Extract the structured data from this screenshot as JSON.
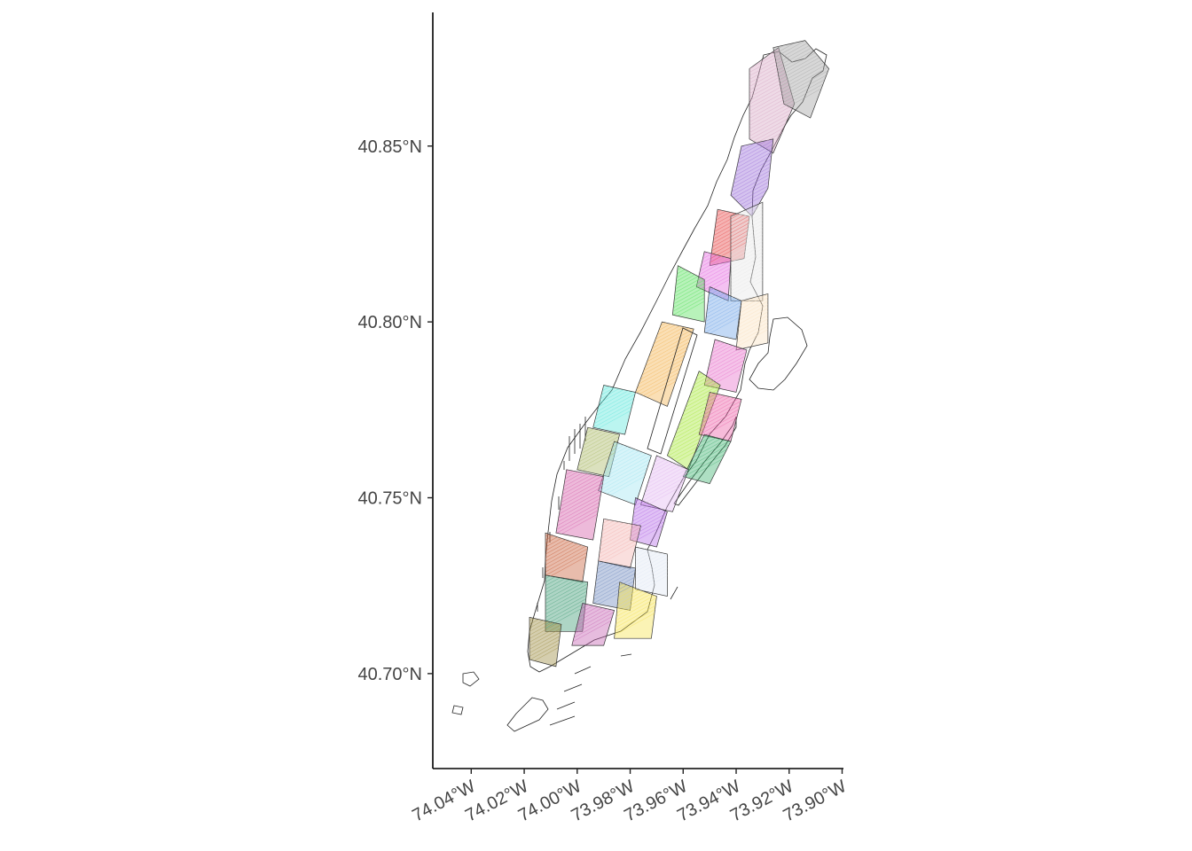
{
  "map": {
    "type": "choropleth",
    "axes": {
      "y_ticks": [
        {
          "value": 40.7,
          "label": "40.70°N"
        },
        {
          "value": 40.75,
          "label": "40.75°N"
        },
        {
          "value": 40.8,
          "label": "40.80°N"
        },
        {
          "value": 40.85,
          "label": "40.85°N"
        }
      ],
      "x_ticks": [
        {
          "value": -74.04,
          "label": "74.04°W"
        },
        {
          "value": -74.02,
          "label": "74.02°W"
        },
        {
          "value": -74.0,
          "label": "74.00°W"
        },
        {
          "value": -73.98,
          "label": "73.98°W"
        },
        {
          "value": -73.96,
          "label": "73.96°W"
        },
        {
          "value": -73.94,
          "label": "73.94°W"
        },
        {
          "value": -73.92,
          "label": "73.92°W"
        },
        {
          "value": -73.9,
          "label": "73.90°W"
        }
      ],
      "x_range": [
        -74.0545,
        -73.8995
      ],
      "y_range": [
        40.673,
        40.888
      ],
      "grid": false
    },
    "regions": [
      {
        "color": "#d7a6c4",
        "points": [
          [
            -73.935,
            40.872
          ],
          [
            -73.924,
            40.878
          ],
          [
            -73.918,
            40.862
          ],
          [
            -73.926,
            40.848
          ],
          [
            -73.935,
            40.852
          ]
        ]
      },
      {
        "color": "#a0a0a0",
        "points": [
          [
            -73.926,
            40.878
          ],
          [
            -73.914,
            40.88
          ],
          [
            -73.905,
            40.872
          ],
          [
            -73.912,
            40.858
          ],
          [
            -73.922,
            40.862
          ]
        ]
      },
      {
        "color": "#9b6fd9",
        "points": [
          [
            -73.938,
            40.85
          ],
          [
            -73.926,
            40.852
          ],
          [
            -73.928,
            40.838
          ],
          [
            -73.934,
            40.83
          ],
          [
            -73.942,
            40.836
          ]
        ]
      },
      {
        "color": "#e84a4a",
        "points": [
          [
            -73.947,
            40.832
          ],
          [
            -73.935,
            40.83
          ],
          [
            -73.937,
            40.818
          ],
          [
            -73.95,
            40.816
          ]
        ]
      },
      {
        "color": "#e46be0",
        "points": [
          [
            -73.952,
            40.82
          ],
          [
            -73.942,
            40.818
          ],
          [
            -73.943,
            40.806
          ],
          [
            -73.955,
            40.81
          ]
        ]
      },
      {
        "color": "#e8e8e8",
        "points": [
          [
            -73.942,
            40.83
          ],
          [
            -73.93,
            40.834
          ],
          [
            -73.93,
            40.806
          ],
          [
            -73.942,
            40.806
          ]
        ]
      },
      {
        "color": "#55e05a",
        "points": [
          [
            -73.962,
            40.816
          ],
          [
            -73.952,
            40.812
          ],
          [
            -73.952,
            40.8
          ],
          [
            -73.964,
            40.802
          ]
        ]
      },
      {
        "color": "#6fa4e8",
        "points": [
          [
            -73.95,
            40.81
          ],
          [
            -73.938,
            40.806
          ],
          [
            -73.94,
            40.795
          ],
          [
            -73.952,
            40.797
          ]
        ]
      },
      {
        "color": "#fbe3c0",
        "points": [
          [
            -73.938,
            40.806
          ],
          [
            -73.928,
            40.808
          ],
          [
            -73.928,
            40.794
          ],
          [
            -73.94,
            40.792
          ]
        ]
      },
      {
        "color": "#f4b24e",
        "points": [
          [
            -73.968,
            40.8
          ],
          [
            -73.956,
            40.798
          ],
          [
            -73.966,
            40.776
          ],
          [
            -73.978,
            40.78
          ]
        ]
      },
      {
        "color": "#e86fca",
        "points": [
          [
            -73.948,
            40.795
          ],
          [
            -73.936,
            40.792
          ],
          [
            -73.94,
            40.78
          ],
          [
            -73.952,
            40.782
          ]
        ]
      },
      {
        "color": "#a8e83a",
        "points": [
          [
            -73.954,
            40.786
          ],
          [
            -73.946,
            40.782
          ],
          [
            -73.958,
            40.758
          ],
          [
            -73.966,
            40.762
          ]
        ]
      },
      {
        "color": "#ec5fa6",
        "points": [
          [
            -73.95,
            40.78
          ],
          [
            -73.938,
            40.778
          ],
          [
            -73.942,
            40.766
          ],
          [
            -73.954,
            40.768
          ]
        ]
      },
      {
        "color": "#3fb270",
        "points": [
          [
            -73.952,
            40.768
          ],
          [
            -73.942,
            40.766
          ],
          [
            -73.95,
            40.754
          ],
          [
            -73.96,
            40.756
          ]
        ]
      },
      {
        "color": "#5ce6dc",
        "points": [
          [
            -73.99,
            40.782
          ],
          [
            -73.978,
            40.78
          ],
          [
            -73.982,
            40.768
          ],
          [
            -73.994,
            40.77
          ]
        ]
      },
      {
        "color": "#a9b864",
        "points": [
          [
            -73.996,
            40.77
          ],
          [
            -73.984,
            40.768
          ],
          [
            -73.988,
            40.756
          ],
          [
            -74.0,
            40.758
          ]
        ]
      },
      {
        "color": "#9fe4f0",
        "points": [
          [
            -73.986,
            40.766
          ],
          [
            -73.972,
            40.762
          ],
          [
            -73.978,
            40.748
          ],
          [
            -73.992,
            40.752
          ]
        ]
      },
      {
        "color": "#e2b8f0",
        "points": [
          [
            -73.97,
            40.762
          ],
          [
            -73.958,
            40.758
          ],
          [
            -73.964,
            40.746
          ],
          [
            -73.976,
            40.748
          ]
        ]
      },
      {
        "color": "#b46be6",
        "points": [
          [
            -73.978,
            40.75
          ],
          [
            -73.966,
            40.746
          ],
          [
            -73.97,
            40.736
          ],
          [
            -73.98,
            40.738
          ]
        ]
      },
      {
        "color": "#d45aa8",
        "points": [
          [
            -74.004,
            40.758
          ],
          [
            -73.99,
            40.756
          ],
          [
            -73.994,
            40.738
          ],
          [
            -74.008,
            40.74
          ]
        ]
      },
      {
        "color": "#f3b3b0",
        "points": [
          [
            -73.99,
            40.744
          ],
          [
            -73.976,
            40.742
          ],
          [
            -73.98,
            40.73
          ],
          [
            -73.992,
            40.732
          ]
        ]
      },
      {
        "color": "#c8603a",
        "points": [
          [
            -74.012,
            40.74
          ],
          [
            -73.996,
            40.736
          ],
          [
            -73.998,
            40.726
          ],
          [
            -74.012,
            40.728
          ]
        ]
      },
      {
        "color": "#6f8bbf",
        "points": [
          [
            -73.992,
            40.732
          ],
          [
            -73.978,
            40.73
          ],
          [
            -73.98,
            40.718
          ],
          [
            -73.994,
            40.72
          ]
        ]
      },
      {
        "color": "#dfe8f4",
        "points": [
          [
            -73.978,
            40.736
          ],
          [
            -73.966,
            40.734
          ],
          [
            -73.966,
            40.722
          ],
          [
            -73.978,
            40.724
          ]
        ]
      },
      {
        "color": "#3f9a74",
        "points": [
          [
            -74.012,
            40.728
          ],
          [
            -73.996,
            40.726
          ],
          [
            -73.998,
            40.712
          ],
          [
            -74.012,
            40.712
          ]
        ]
      },
      {
        "color": "#c45fb0",
        "points": [
          [
            -73.998,
            40.72
          ],
          [
            -73.986,
            40.718
          ],
          [
            -73.99,
            40.708
          ],
          [
            -74.002,
            40.708
          ]
        ]
      },
      {
        "color": "#f6e24e",
        "points": [
          [
            -73.984,
            40.726
          ],
          [
            -73.97,
            40.722
          ],
          [
            -73.972,
            40.71
          ],
          [
            -73.986,
            40.71
          ]
        ]
      },
      {
        "color": "#9b8a3e",
        "points": [
          [
            -74.018,
            40.716
          ],
          [
            -74.006,
            40.714
          ],
          [
            -74.008,
            40.702
          ],
          [
            -74.018,
            40.704
          ]
        ]
      }
    ]
  }
}
